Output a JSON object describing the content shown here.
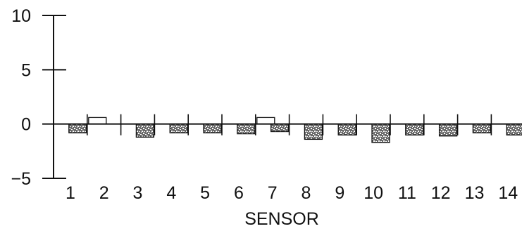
{
  "chart_data": {
    "type": "bar",
    "xlabel": "SENSOR",
    "ylabel": "",
    "categories": [
      "1",
      "2",
      "3",
      "4",
      "5",
      "6",
      "7",
      "8",
      "9",
      "10",
      "11",
      "12",
      "13",
      "14"
    ],
    "y_ticks": [
      "10",
      "5",
      "0",
      "−5"
    ],
    "y_tick_values": [
      10,
      5,
      0,
      -5
    ],
    "ylim": [
      -5,
      10
    ],
    "grid": false,
    "legend": "none",
    "series": [
      {
        "pattern": "none",
        "values": [
          0,
          0.6,
          0,
          0,
          0,
          0,
          0.6,
          0,
          0,
          0,
          0,
          0,
          0,
          0
        ]
      },
      {
        "pattern": "stipple",
        "values": [
          -0.8,
          0,
          -1.2,
          -0.8,
          -0.8,
          -0.9,
          -0.7,
          -1.4,
          -1.0,
          -1.7,
          -1.0,
          -1.1,
          -0.8,
          -1.0
        ]
      }
    ]
  }
}
